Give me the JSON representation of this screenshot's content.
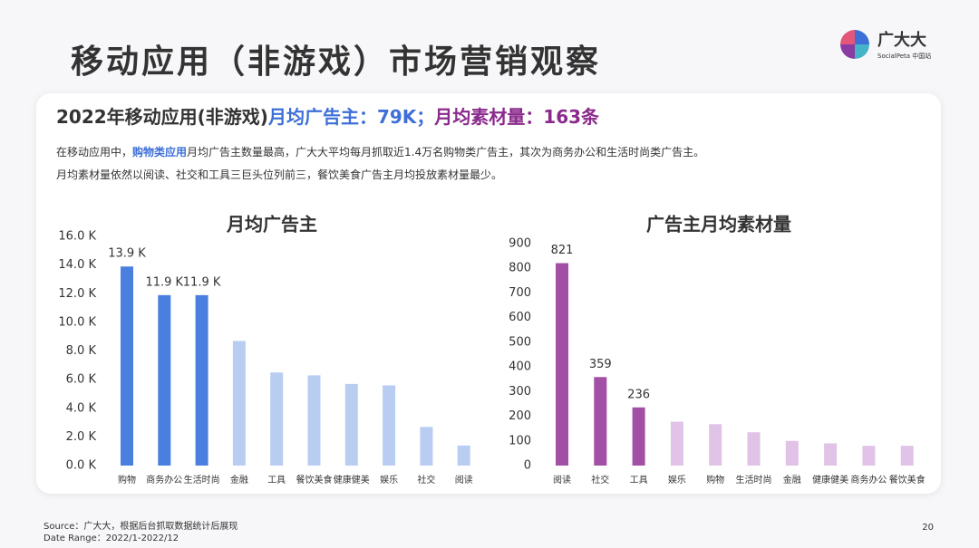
{
  "title": "移动应用（非游戏）市场营销观察",
  "logo": {
    "name": "广大大",
    "sub": "SocialPeta 中国站"
  },
  "subtitle": [
    "2022年移动应用(非游戏)",
    "月均广告主：79K；",
    "月均素材量：163条"
  ],
  "description": [
    [
      "在移动应用中，",
      "购物类应用",
      "月均广告主数量最高，广大大平均每月抓取近1.4万名购物类广告主，其次为商务办公和生活时尚类广告主。"
    ],
    [
      "月均素材量依然以阅读、社交和工具三巨头位列前三，餐饮美食广告主月均投放素材量最少。"
    ]
  ],
  "source": "Source：广大大，根据后台抓取数据统计后展现",
  "date_range": "Date Range：2022/1-2022/12",
  "page_number": "20",
  "chart_data": [
    {
      "type": "bar",
      "title": "月均广告主",
      "categories": [
        "购物",
        "商务办公",
        "生活时尚",
        "金融",
        "工具",
        "餐饮美食",
        "健康健美",
        "娱乐",
        "社交",
        "阅读"
      ],
      "values": [
        13.9,
        11.9,
        11.9,
        8.7,
        6.5,
        6.3,
        5.7,
        5.6,
        2.7,
        1.4
      ],
      "value_labels": [
        "13.9 K",
        "11.9 K",
        "11.9 K",
        null,
        null,
        null,
        null,
        null,
        null,
        null
      ],
      "colors": [
        "#4a7fe0",
        "#4a7fe0",
        "#4a7fe0",
        "#b9cdf3",
        "#b9cdf3",
        "#b9cdf3",
        "#b9cdf3",
        "#b9cdf3",
        "#b9cdf3",
        "#b9cdf3"
      ],
      "title_color": "#3e6fd8",
      "ylim": [
        0,
        16
      ],
      "yticks": [
        {
          "value": 0,
          "label": "0.0 K"
        },
        {
          "value": 2,
          "label": "2.0 K"
        },
        {
          "value": 4,
          "label": "4.0 K"
        },
        {
          "value": 6,
          "label": "6.0 K"
        },
        {
          "value": 8,
          "label": "8.0 K"
        },
        {
          "value": 10,
          "label": "10.0 K"
        },
        {
          "value": 12,
          "label": "12.0 K"
        },
        {
          "value": 14,
          "label": "14.0 K"
        },
        {
          "value": 16,
          "label": "16.0 K"
        }
      ]
    },
    {
      "type": "bar",
      "title": "广告主月均素材量",
      "categories": [
        "阅读",
        "社交",
        "工具",
        "娱乐",
        "购物",
        "生活时尚",
        "金融",
        "健康健美",
        "商务办公",
        "餐饮美食"
      ],
      "values": [
        821,
        359,
        236,
        178,
        168,
        135,
        100,
        90,
        80,
        80
      ],
      "value_labels": [
        "821",
        "359",
        "236",
        null,
        null,
        null,
        null,
        null,
        null,
        null
      ],
      "colors": [
        "#a24fa6",
        "#a24fa6",
        "#a24fa6",
        "#e0c3e6",
        "#e0c3e6",
        "#e0c3e6",
        "#e0c3e6",
        "#e0c3e6",
        "#e0c3e6",
        "#e0c3e6"
      ],
      "title_color": "#8a2a8c",
      "ylim": [
        0,
        900
      ],
      "yticks": [
        0,
        100,
        200,
        300,
        400,
        500,
        600,
        700,
        800,
        900
      ]
    }
  ]
}
